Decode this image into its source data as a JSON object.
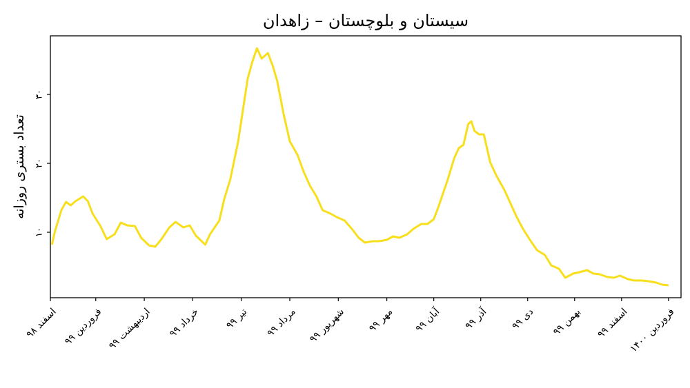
{
  "chart_data": {
    "type": "line",
    "title": "سیستان و بلوچستان  –  زاهدان",
    "ylabel": "تعداد بستری روزانه",
    "color": "#f7df1e",
    "xlim": [
      0,
      403
    ],
    "ylim": [
      0.5,
      38.5
    ],
    "xticks": [
      {
        "value": 0,
        "label": "اسفند ۹۸"
      },
      {
        "value": 29,
        "label": "فروردین ۹۹"
      },
      {
        "value": 60,
        "label": "اردیبهشت ۹۹"
      },
      {
        "value": 91,
        "label": "خرداد ۹۹"
      },
      {
        "value": 122,
        "label": "تیر ۹۹"
      },
      {
        "value": 153,
        "label": "مرداد ۹۹"
      },
      {
        "value": 184,
        "label": "شهریور ۹۹"
      },
      {
        "value": 215,
        "label": "مهر ۹۹"
      },
      {
        "value": 245,
        "label": "آبان ۹۹"
      },
      {
        "value": 275,
        "label": "آذر ۹۹"
      },
      {
        "value": 305,
        "label": "دی ۹۹"
      },
      {
        "value": 335,
        "label": "بهمن ۹۹"
      },
      {
        "value": 365,
        "label": "اسفند ۹۹"
      },
      {
        "value": 395,
        "label": "فروردین ۱۴۰۰"
      }
    ],
    "yticks": [
      {
        "value": 10,
        "label": "۱۰"
      },
      {
        "value": 20,
        "label": "۲۰"
      },
      {
        "value": 30,
        "label": "۳۰"
      }
    ],
    "x": [
      1,
      3,
      7,
      10,
      13,
      16,
      21,
      24,
      27,
      32,
      36,
      41,
      45,
      49,
      54,
      58,
      63,
      67,
      71,
      76,
      80,
      85,
      89,
      93,
      99,
      102,
      108,
      111,
      115,
      120,
      123,
      126,
      129,
      132,
      135,
      139,
      142,
      145,
      149,
      153,
      158,
      162,
      166,
      170,
      174,
      179,
      183,
      188,
      193,
      197,
      201,
      206,
      210,
      215,
      219,
      223,
      228,
      232,
      237,
      241,
      245,
      248,
      251,
      254,
      258,
      261,
      264,
      267,
      269,
      271,
      274,
      277,
      281,
      285,
      290,
      294,
      298,
      302,
      307,
      311,
      316,
      320,
      325,
      329,
      334,
      338,
      343,
      347,
      351,
      356,
      360,
      364,
      369,
      373,
      378,
      382,
      387,
      391,
      395
    ],
    "values": [
      8.2,
      10.2,
      13.2,
      14.4,
      13.9,
      14.5,
      15.2,
      14.5,
      12.7,
      10.9,
      9.0,
      9.7,
      11.4,
      11.0,
      10.9,
      9.2,
      8.1,
      7.9,
      9.0,
      10.7,
      11.5,
      10.7,
      11.0,
      9.5,
      8.2,
      9.7,
      11.7,
      14.7,
      17.7,
      23.2,
      27.7,
      32.2,
      34.7,
      36.7,
      35.2,
      36.0,
      34.2,
      31.9,
      27.2,
      23.2,
      21.2,
      18.7,
      16.7,
      15.2,
      13.2,
      12.7,
      12.2,
      11.7,
      10.4,
      9.2,
      8.5,
      8.7,
      8.7,
      8.9,
      9.4,
      9.2,
      9.7,
      10.5,
      11.2,
      11.2,
      11.9,
      13.7,
      15.7,
      17.7,
      20.7,
      22.2,
      22.7,
      25.7,
      26.1,
      24.7,
      24.2,
      24.2,
      20.2,
      18.2,
      16.2,
      14.2,
      12.2,
      10.5,
      8.7,
      7.4,
      6.7,
      5.2,
      4.7,
      3.4,
      4.0,
      4.2,
      4.5,
      4.0,
      3.9,
      3.5,
      3.4,
      3.7,
      3.2,
      3.0,
      3.0,
      2.9,
      2.7,
      2.4,
      2.3
    ]
  }
}
